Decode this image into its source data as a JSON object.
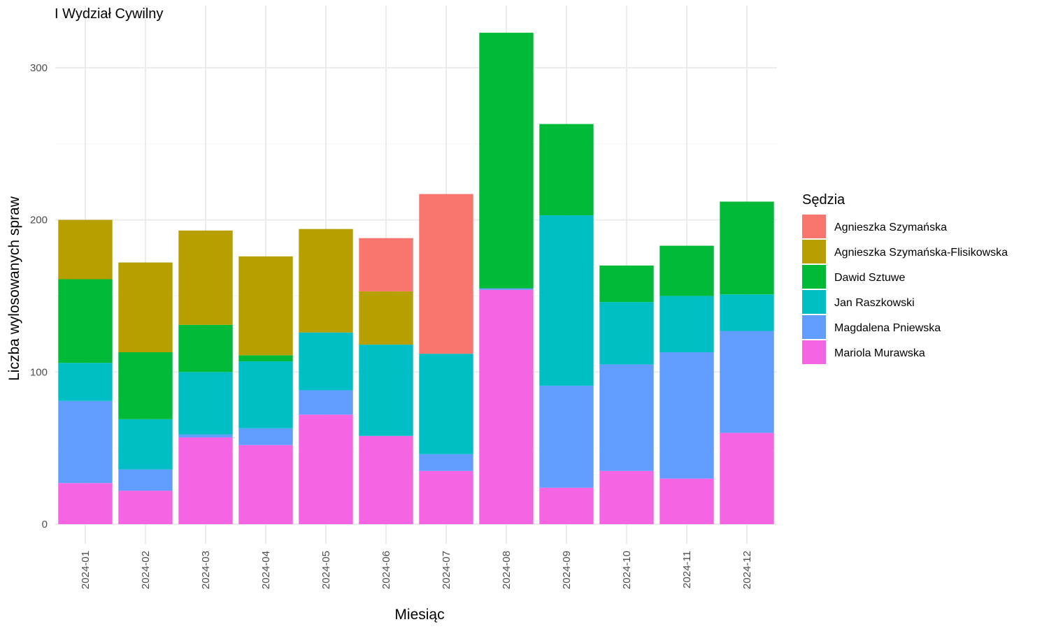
{
  "chart_data": {
    "type": "bar",
    "stacked": true,
    "title": "I Wydział Cywilny",
    "xlabel": "Miesiąc",
    "ylabel": "Liczba wylosowanych spraw",
    "ylim": [
      0,
      325
    ],
    "yticks": [
      0,
      100,
      200,
      300
    ],
    "grid": true,
    "legend_title": "Sędzia",
    "legend_position": "right",
    "categories": [
      "2024-01",
      "2024-02",
      "2024-03",
      "2024-04",
      "2024-05",
      "2024-06",
      "2024-07",
      "2024-08",
      "2024-09",
      "2024-10",
      "2024-11",
      "2024-12"
    ],
    "series": [
      {
        "name": "Agnieszka Szymańska",
        "color": "#F8766D",
        "values": [
          0,
          0,
          0,
          0,
          0,
          35,
          105,
          0,
          0,
          0,
          0,
          0
        ]
      },
      {
        "name": "Agnieszka Szymańska-Flisikowska",
        "color": "#B79F00",
        "values": [
          39,
          59,
          62,
          65,
          68,
          35,
          0,
          0,
          0,
          0,
          0,
          0
        ]
      },
      {
        "name": "Dawid Sztuwe",
        "color": "#00BA38",
        "values": [
          55,
          44,
          31,
          4,
          0,
          0,
          0,
          168,
          60,
          24,
          33,
          61
        ]
      },
      {
        "name": "Jan Raszkowski",
        "color": "#00BFC4",
        "values": [
          25,
          33,
          41,
          44,
          38,
          60,
          66,
          0,
          112,
          41,
          37,
          24
        ]
      },
      {
        "name": "Magdalena Pniewska",
        "color": "#619CFF",
        "values": [
          54,
          14,
          2,
          11,
          16,
          0,
          11,
          1,
          67,
          70,
          83,
          67
        ]
      },
      {
        "name": "Mariola Murawska",
        "color": "#F564E3",
        "values": [
          27,
          22,
          57,
          52,
          72,
          58,
          35,
          154,
          24,
          35,
          30,
          60
        ]
      }
    ]
  }
}
